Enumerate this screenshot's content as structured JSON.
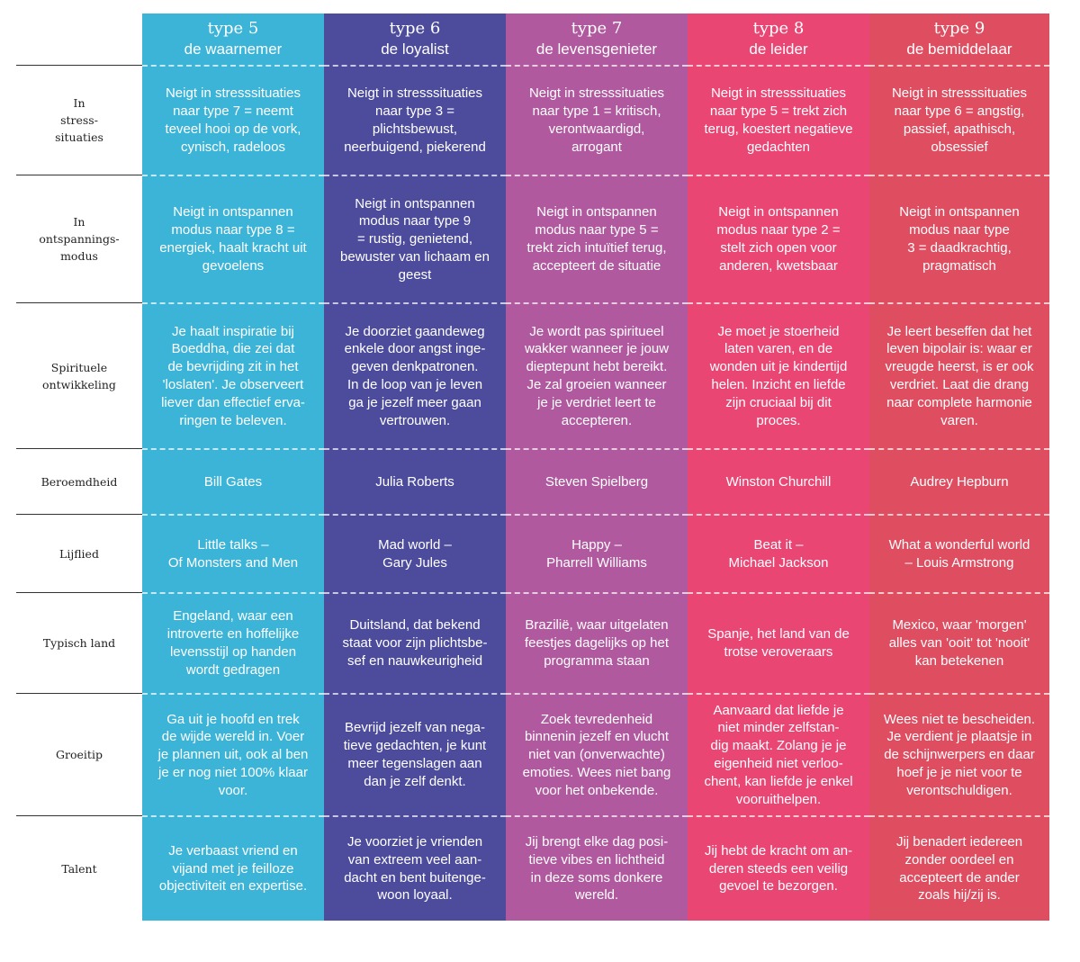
{
  "columns": [
    {
      "type": "type 5",
      "name": "de waarnemer",
      "color": "#3BB4D8"
    },
    {
      "type": "type 6",
      "name": "de loyalist",
      "color": "#4D4B9C"
    },
    {
      "type": "type 7",
      "name": "de levensgenieter",
      "color": "#B0599F"
    },
    {
      "type": "type 8",
      "name": "de leider",
      "color": "#EA4674"
    },
    {
      "type": "type 9",
      "name": "de bemiddelaar",
      "color": "#DE4D60"
    }
  ],
  "rows": [
    {
      "label": "In\nstress-\nsituaties",
      "cells": [
        "Neigt in stresssituaties\nnaar type 7 = neemt\nteveel hooi op de vork,\ncynisch, radeloos",
        "Neigt in stresssituaties\nnaar type 3 =\nplichtsbewust,\nneerbuigend, piekerend",
        "Neigt in stresssituaties\nnaar type 1 = kritisch,\nverontwaardigd,\narrogant",
        "Neigt in stresssituaties\nnaar type 5 = trekt zich\nterug, koestert negatieve\ngedachten",
        "Neigt in stresssituaties\nnaar type 6 = angstig,\npassief, apathisch,\nobsessief"
      ]
    },
    {
      "label": "In\nontspannings-\nmodus",
      "cells": [
        "Neigt in ontspannen\nmodus naar type 8 =\nenergiek, haalt kracht uit\ngevoelens",
        "Neigt in ontspannen\nmodus naar type 9\n= rustig, genietend,\nbewuster van lichaam en\ngeest",
        "Neigt in ontspannen\nmodus naar type 5 =\ntrekt zich intuïtief terug,\naccepteert de situatie",
        "Neigt in ontspannen\nmodus naar type 2 =\nstelt zich open voor\nanderen, kwetsbaar",
        "Neigt in ontspannen\nmodus naar type\n3 = daadkrachtig,\npragmatisch"
      ]
    },
    {
      "label": "Spirituele\nontwikkeling",
      "cells": [
        "Je haalt inspiratie bij\nBoeddha, die zei dat\nde bevrijding zit in het\n'loslaten'. Je observeert\nliever dan effectief erva-\nringen te beleven.",
        "Je doorziet gaandeweg\nenkele door angst inge-\ngeven denkpatronen.\nIn de loop van je leven\nga je jezelf meer gaan\nvertrouwen.",
        "Je wordt pas spiritueel\nwakker wanneer je jouw\ndieptepunt hebt bereikt.\nJe zal groeien wanneer\nje je verdriet leert te\naccepteren.",
        "Je moet je stoerheid\nlaten varen, en de\nwonden uit je kindertijd\nhelen. Inzicht en liefde\nzijn cruciaal bij dit\nproces.",
        "Je leert beseffen dat het\nleven bipolair is: waar er\nvreugde heerst, is er ook\nverdriet. Laat die drang\nnaar complete harmonie\nvaren."
      ]
    },
    {
      "label": "Beroemdheid",
      "cells": [
        "Bill Gates",
        "Julia Roberts",
        "Steven Spielberg",
        "Winston Churchill",
        "Audrey Hepburn"
      ]
    },
    {
      "label": "Lijflied",
      "cells": [
        "Little talks –\nOf Monsters and Men",
        "Mad world –\nGary Jules",
        "Happy –\nPharrell Williams",
        "Beat it –\nMichael Jackson",
        "What a wonderful world\n– Louis Armstrong"
      ]
    },
    {
      "label": "Typisch land",
      "cells": [
        "Engeland, waar een\nintroverte en hoffelijke\nlevensstijl op handen\nwordt gedragen",
        "Duitsland, dat bekend\nstaat voor zijn plichtsbe-\nsef en nauwkeurigheid",
        "Brazilië, waar uitgelaten\nfeestjes dagelijks op het\nprogramma staan",
        "Spanje, het land van de\ntrotse veroveraars",
        "Mexico, waar 'morgen'\nalles van 'ooit' tot 'nooit'\nkan betekenen"
      ]
    },
    {
      "label": "Groeitip",
      "cells": [
        "Ga uit je hoofd en trek\nde wijde wereld in. Voer\nje plannen uit, ook al ben\nje er nog niet 100% klaar\nvoor.",
        "Bevrijd jezelf van nega-\ntieve gedachten, je kunt\nmeer tegenslagen aan\ndan je zelf denkt.",
        "Zoek tevredenheid\nbinnenin jezelf en vlucht\nniet van (onverwachte)\nemoties. Wees niet bang\nvoor het onbekende.",
        "Aanvaard dat liefde je\nniet minder zelfstan-\ndig maakt. Zolang je je\neigenheid niet verloo-\nchent, kan liefde je enkel\nvooruithelpen.",
        "Wees niet te bescheiden.\nJe verdient je plaatsje in\nde schijnwerpers en daar\nhoef je je niet voor te\nverontschuldigen."
      ]
    },
    {
      "label": "Talent",
      "cells": [
        "Je verbaast vriend en\nvijand met je feilloze\nobjectiviteit en expertise.",
        "Je voorziet je vrienden\nvan extreem veel aan-\ndacht en bent buitenge-\nwoon loyaal.",
        "Jij brengt elke dag posi-\ntieve vibes en lichtheid\nin deze soms donkere\nwereld.",
        "Jij hebt de kracht om an-\nderen steeds een veilig\ngevoel te bezorgen.",
        "Jij benadert iedereen\nzonder oordeel en\naccepteert de ander\nzoals hij/zij is."
      ]
    }
  ]
}
